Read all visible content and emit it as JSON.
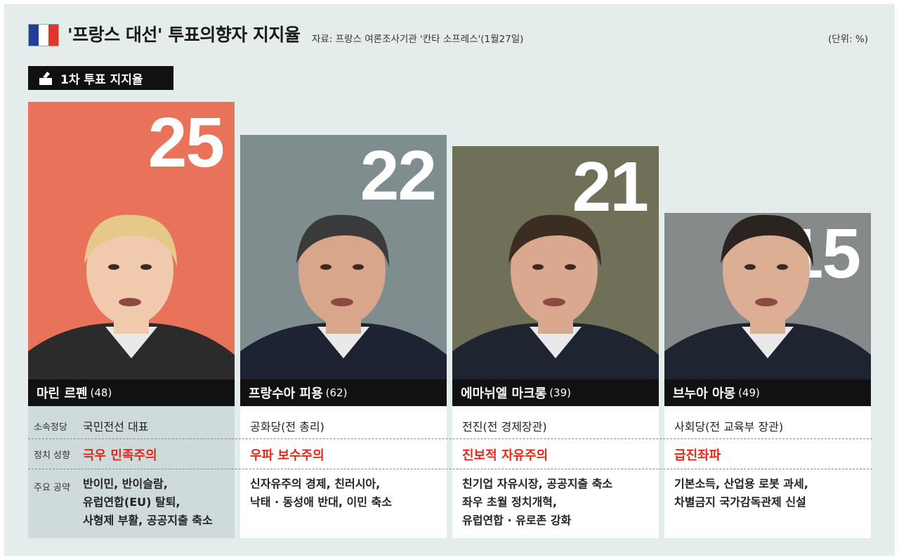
{
  "header": {
    "title": "'프랑스 대선' 투표의향자 지지율",
    "source": "자료: 프랑스 여론조사기관 '칸타 소프레스'(1월27일)",
    "unit": "(단위: %)",
    "flag_colors": [
      "#1f3f9a",
      "#ffffff",
      "#e0352b"
    ]
  },
  "section": {
    "label": "1차 투표 지지율",
    "icon": "ballot-box-icon"
  },
  "row_labels": {
    "party": "소속정당",
    "ideology": "정치 성향",
    "pledges": "주요 공약"
  },
  "chart_data": {
    "type": "bar",
    "title": "'프랑스 대선' 투표의향자 지지율",
    "subtitle": "1차 투표 지지율",
    "ylabel": "",
    "unit": "%",
    "categories": [
      "마린 르펜",
      "프랑수아 피용",
      "에마뉘엘 마크롱",
      "브누아 아몽"
    ],
    "values": [
      25,
      22,
      21,
      15
    ],
    "colors": [
      "#e8735a",
      "#7f8d8e",
      "#707058",
      "#868a8a"
    ]
  },
  "candidates": [
    {
      "name": "마린 르펜",
      "age": "(48)",
      "value": "25",
      "party": "국민전선 대표",
      "ideology": "극우 민족주의",
      "pledges": [
        "반이민, 반이슬람,",
        "유럽연합(EU) 탈퇴,",
        "사형제 부활, 공공지출 축소"
      ]
    },
    {
      "name": "프랑수아 피용",
      "age": "(62)",
      "value": "22",
      "party": "공화당(전 총리)",
      "ideology": "우파 보수주의",
      "pledges": [
        "신자유주의 경제, 친러시아,",
        "낙태 · 동성애 반대, 이민 축소"
      ]
    },
    {
      "name": "에마뉘엘 마크롱",
      "age": "(39)",
      "value": "21",
      "party": "전진(전 경제장관)",
      "ideology": "진보적 자유주의",
      "pledges": [
        "친기업 자유시장, 공공지출 축소",
        "좌우 초월 정치개혁,",
        "유럽연합 · 유로존 강화"
      ]
    },
    {
      "name": "브누아 아몽",
      "age": "(49)",
      "value": "15",
      "party": "사회당(전 교육부 장관)",
      "ideology": "급진좌파",
      "pledges": [
        "기본소득, 산업용 로봇 과세,",
        "차별금지 국가감독관제 신설"
      ]
    }
  ]
}
